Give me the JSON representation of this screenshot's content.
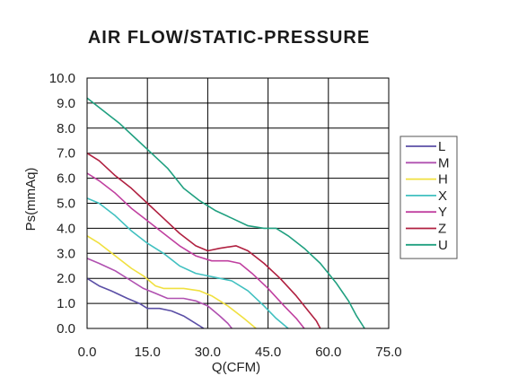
{
  "chart_data": {
    "type": "line",
    "title": "AIR FLOW/STATIC-PRESSURE",
    "xlabel": "Q(CFM)",
    "ylabel": "Ps(mmAq)",
    "xlim": [
      0,
      75
    ],
    "ylim": [
      0,
      10
    ],
    "x_ticks": [
      "0.0",
      "15.0",
      "30.0",
      "45.0",
      "60.0",
      "75.0"
    ],
    "y_ticks": [
      "0.0",
      "1.0",
      "2.0",
      "3.0",
      "4.0",
      "5.0",
      "6.0",
      "7.0",
      "8.0",
      "9.0",
      "10.0"
    ],
    "grid": true,
    "legend_position": "right",
    "series": [
      {
        "name": "L",
        "color": "#5b4fa6",
        "points": [
          [
            0,
            2.0
          ],
          [
            3,
            1.7
          ],
          [
            6,
            1.5
          ],
          [
            10,
            1.2
          ],
          [
            13,
            1.0
          ],
          [
            15,
            0.8
          ],
          [
            18,
            0.8
          ],
          [
            21,
            0.7
          ],
          [
            24,
            0.5
          ],
          [
            27,
            0.2
          ],
          [
            29,
            0.0
          ]
        ]
      },
      {
        "name": "M",
        "color": "#b050b0",
        "points": [
          [
            0,
            2.8
          ],
          [
            3,
            2.6
          ],
          [
            7,
            2.3
          ],
          [
            11,
            1.9
          ],
          [
            14,
            1.6
          ],
          [
            17,
            1.4
          ],
          [
            20,
            1.2
          ],
          [
            24,
            1.2
          ],
          [
            27,
            1.1
          ],
          [
            30,
            0.9
          ],
          [
            33,
            0.5
          ],
          [
            35,
            0.2
          ],
          [
            36,
            0.0
          ]
        ]
      },
      {
        "name": "H",
        "color": "#f0e040",
        "points": [
          [
            0,
            3.7
          ],
          [
            3,
            3.4
          ],
          [
            7,
            2.9
          ],
          [
            11,
            2.4
          ],
          [
            14,
            2.1
          ],
          [
            17,
            1.7
          ],
          [
            19,
            1.6
          ],
          [
            24,
            1.6
          ],
          [
            28,
            1.5
          ],
          [
            31,
            1.3
          ],
          [
            35,
            0.9
          ],
          [
            39,
            0.4
          ],
          [
            42,
            0.0
          ]
        ]
      },
      {
        "name": "X",
        "color": "#40c0c0",
        "points": [
          [
            0,
            5.2
          ],
          [
            3,
            5.0
          ],
          [
            7,
            4.5
          ],
          [
            11,
            3.9
          ],
          [
            15,
            3.4
          ],
          [
            19,
            3.0
          ],
          [
            23,
            2.5
          ],
          [
            27,
            2.2
          ],
          [
            30,
            2.1
          ],
          [
            33,
            2.0
          ],
          [
            36,
            1.9
          ],
          [
            40,
            1.5
          ],
          [
            44,
            0.9
          ],
          [
            47,
            0.4
          ],
          [
            50,
            0.0
          ]
        ]
      },
      {
        "name": "Y",
        "color": "#c040a0",
        "points": [
          [
            0,
            6.2
          ],
          [
            3,
            5.9
          ],
          [
            7,
            5.4
          ],
          [
            11,
            4.8
          ],
          [
            15,
            4.3
          ],
          [
            19,
            3.8
          ],
          [
            23,
            3.3
          ],
          [
            27,
            2.9
          ],
          [
            31,
            2.7
          ],
          [
            35,
            2.7
          ],
          [
            38,
            2.6
          ],
          [
            41,
            2.2
          ],
          [
            45,
            1.6
          ],
          [
            49,
            0.9
          ],
          [
            52,
            0.4
          ],
          [
            54,
            0.0
          ]
        ]
      },
      {
        "name": "Z",
        "color": "#b02040",
        "points": [
          [
            0,
            7.0
          ],
          [
            3,
            6.7
          ],
          [
            7,
            6.1
          ],
          [
            11,
            5.6
          ],
          [
            15,
            5.0
          ],
          [
            19,
            4.4
          ],
          [
            23,
            3.8
          ],
          [
            27,
            3.3
          ],
          [
            30,
            3.1
          ],
          [
            33,
            3.2
          ],
          [
            37,
            3.3
          ],
          [
            40,
            3.1
          ],
          [
            44,
            2.6
          ],
          [
            48,
            2.0
          ],
          [
            52,
            1.3
          ],
          [
            55,
            0.7
          ],
          [
            57,
            0.3
          ],
          [
            58,
            0.0
          ]
        ]
      },
      {
        "name": "U",
        "color": "#20a080",
        "points": [
          [
            0,
            9.2
          ],
          [
            4,
            8.7
          ],
          [
            8,
            8.2
          ],
          [
            12,
            7.6
          ],
          [
            16,
            7.0
          ],
          [
            20,
            6.4
          ],
          [
            24,
            5.6
          ],
          [
            28,
            5.1
          ],
          [
            32,
            4.7
          ],
          [
            36,
            4.4
          ],
          [
            40,
            4.1
          ],
          [
            44,
            4.0
          ],
          [
            47,
            4.0
          ],
          [
            50,
            3.7
          ],
          [
            54,
            3.2
          ],
          [
            58,
            2.6
          ],
          [
            62,
            1.8
          ],
          [
            65,
            1.1
          ],
          [
            67,
            0.5
          ],
          [
            69,
            0.0
          ]
        ]
      }
    ]
  }
}
